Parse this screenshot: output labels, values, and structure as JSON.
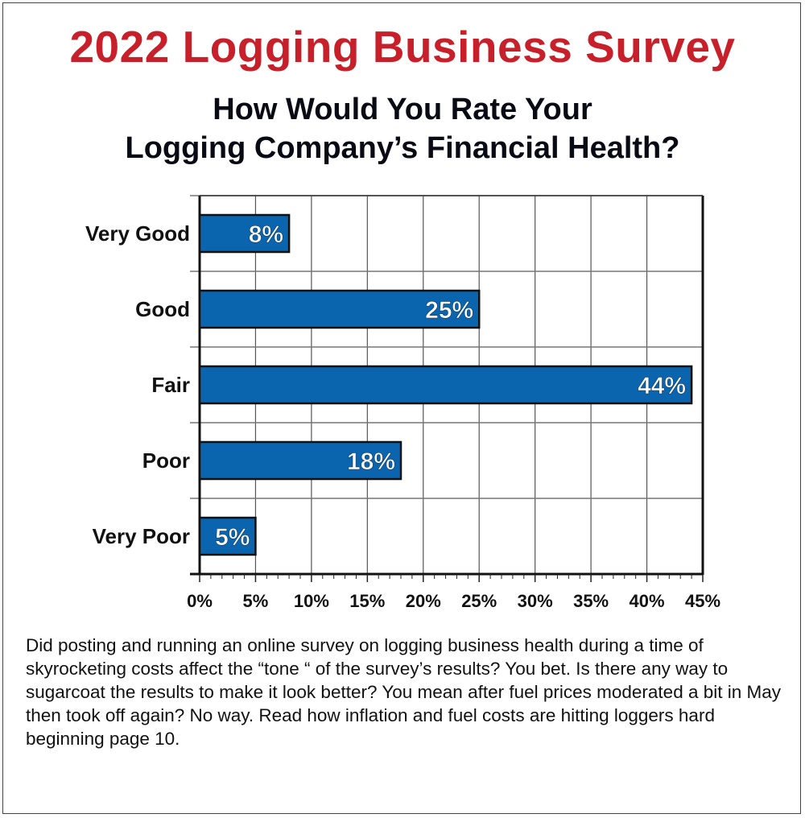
{
  "header": {
    "title": "2022 Logging Business Survey",
    "subtitle_line1": "How Would You Rate Your",
    "subtitle_line2": "Logging Company’s Financial Health?"
  },
  "chart_data": {
    "type": "bar",
    "orientation": "horizontal",
    "title": "How Would You Rate Your Logging Company’s Financial Health?",
    "categories": [
      "Very Good",
      "Good",
      "Fair",
      "Poor",
      "Very Poor"
    ],
    "values": [
      8,
      25,
      44,
      18,
      5
    ],
    "data_labels": [
      "8%",
      "25%",
      "44%",
      "18%",
      "5%"
    ],
    "xlim": [
      0,
      45
    ],
    "xticks": [
      0,
      5,
      10,
      15,
      20,
      25,
      30,
      35,
      40,
      45
    ],
    "xtick_labels": [
      "0%",
      "5%",
      "10%",
      "15%",
      "20%",
      "25%",
      "30%",
      "35%",
      "40%",
      "45%"
    ],
    "xlabel": "",
    "ylabel": "",
    "grid": true,
    "bar_color": "#0a64ae"
  },
  "caption": "Did posting and running an online survey on logging business health during a time of skyrocketing costs affect the “tone “ of the survey’s results? You bet. Is there any way to sugarcoat the results to make it look better? You mean after fuel prices moderated a bit in May then took off again? No way. Read how inflation and fuel costs are hitting loggers hard beginning page 10."
}
